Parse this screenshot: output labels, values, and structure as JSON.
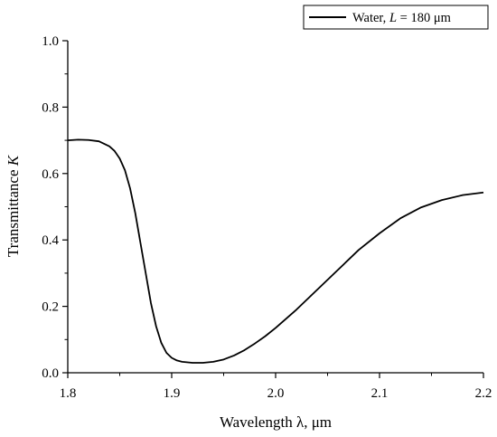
{
  "chart_data": {
    "type": "line",
    "title": "",
    "xlabel": "Wavelength λ, μm",
    "ylabel": {
      "prefix": "Transmittance ",
      "italic": "K"
    },
    "xlim": [
      1.8,
      2.2
    ],
    "ylim": [
      0.0,
      1.0
    ],
    "xticks": [
      "1.8",
      "1.9",
      "2.0",
      "2.1",
      "2.2"
    ],
    "yticks": [
      "0.0",
      "0.2",
      "0.4",
      "0.6",
      "0.8",
      "1.0"
    ],
    "grid": false,
    "legend_position": "top-right",
    "legend": {
      "prefix": "Water, ",
      "italic": "L",
      "suffix": " = 180 μm"
    },
    "series": [
      {
        "name": "Water, L = 180 μm",
        "color": "#000000",
        "x": [
          1.8,
          1.81,
          1.82,
          1.83,
          1.84,
          1.845,
          1.85,
          1.855,
          1.86,
          1.865,
          1.87,
          1.875,
          1.88,
          1.885,
          1.89,
          1.895,
          1.9,
          1.905,
          1.91,
          1.92,
          1.93,
          1.94,
          1.95,
          1.96,
          1.97,
          1.98,
          1.99,
          2.0,
          2.02,
          2.04,
          2.06,
          2.08,
          2.1,
          2.12,
          2.14,
          2.16,
          2.18,
          2.2
        ],
        "y": [
          0.7,
          0.702,
          0.701,
          0.697,
          0.682,
          0.668,
          0.645,
          0.61,
          0.555,
          0.48,
          0.39,
          0.3,
          0.21,
          0.14,
          0.09,
          0.06,
          0.045,
          0.037,
          0.033,
          0.03,
          0.03,
          0.033,
          0.04,
          0.052,
          0.068,
          0.088,
          0.11,
          0.135,
          0.19,
          0.25,
          0.31,
          0.37,
          0.42,
          0.465,
          0.498,
          0.52,
          0.535,
          0.543
        ]
      }
    ]
  }
}
